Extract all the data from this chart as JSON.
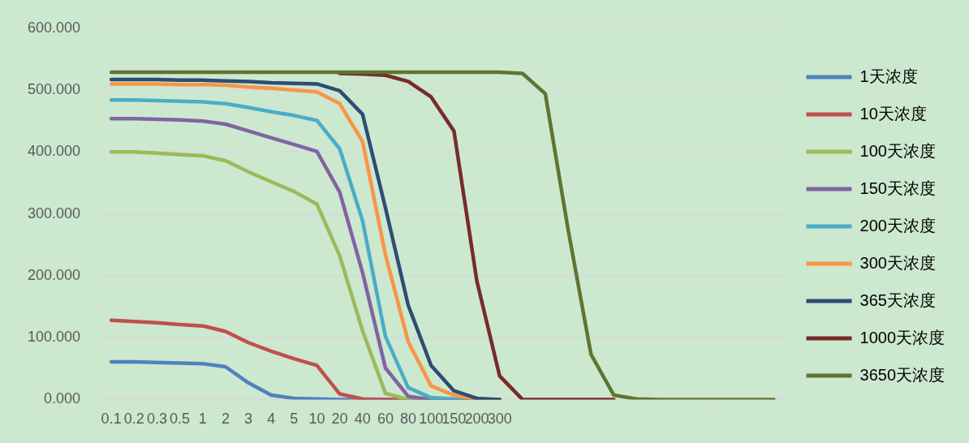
{
  "chart_data": {
    "type": "line",
    "categories": [
      "0.1",
      "0.2",
      "0.3",
      "0.5",
      "1",
      "2",
      "3",
      "4",
      "5",
      "10",
      "20",
      "40",
      "60",
      "80",
      "100",
      "150",
      "200",
      "300",
      null,
      null,
      null,
      null,
      null,
      null,
      null,
      null,
      null,
      null,
      null,
      null
    ],
    "ylim": [
      0,
      600
    ],
    "yticks": [
      {
        "value": 0,
        "label": "0.000"
      },
      {
        "value": 100,
        "label": "100.000"
      },
      {
        "value": 200,
        "label": "200.000"
      },
      {
        "value": 300,
        "label": "300.000"
      },
      {
        "value": 400,
        "label": "400.000"
      },
      {
        "value": 500,
        "label": "500.000"
      },
      {
        "value": 600,
        "label": "600.000"
      }
    ],
    "grid": "y",
    "legend": "right",
    "marker": "none",
    "line_style": "solid",
    "series": [
      {
        "name": "1天浓度",
        "color": "#4f81bd",
        "values": [
          61,
          61,
          60,
          59,
          58,
          53,
          27,
          7,
          2,
          1,
          0,
          0,
          0,
          0,
          0,
          0,
          0,
          0,
          null,
          null,
          null,
          null,
          null,
          null,
          null,
          null,
          null,
          null,
          null,
          null
        ]
      },
      {
        "name": "10天浓度",
        "color": "#c0504d",
        "values": [
          128,
          126,
          124,
          121,
          119,
          110,
          92,
          78,
          66,
          55,
          9,
          1,
          0,
          0,
          0,
          0,
          0,
          0,
          null,
          null,
          null,
          null,
          null,
          null,
          null,
          null,
          null,
          null,
          null,
          null
        ]
      },
      {
        "name": "100天浓度",
        "color": "#9bbb59",
        "values": [
          400,
          400,
          398,
          396,
          394,
          386,
          368,
          352,
          336,
          316,
          232,
          111,
          10,
          0,
          0,
          0,
          0,
          0,
          null,
          null,
          null,
          null,
          null,
          null,
          null,
          null,
          null,
          null,
          null,
          null
        ]
      },
      {
        "name": "150天浓度",
        "color": "#8064a2",
        "values": [
          454,
          454,
          453,
          452,
          450,
          445,
          434,
          423,
          412,
          401,
          335,
          205,
          51,
          5,
          0,
          0,
          0,
          0,
          null,
          null,
          null,
          null,
          null,
          null,
          null,
          null,
          null,
          null,
          null,
          null
        ]
      },
      {
        "name": "200天浓度",
        "color": "#4bacc6",
        "values": [
          484,
          484,
          483,
          482,
          481,
          478,
          472,
          465,
          459,
          451,
          405,
          289,
          102,
          19,
          3,
          1,
          0,
          0,
          null,
          null,
          null,
          null,
          null,
          null,
          null,
          null,
          null,
          null,
          null,
          null
        ]
      },
      {
        "name": "300天浓度",
        "color": "#f79646",
        "values": [
          510,
          510,
          510,
          509,
          509,
          508,
          505,
          503,
          500,
          497,
          478,
          417,
          234,
          93,
          22,
          7,
          0,
          0,
          null,
          null,
          null,
          null,
          null,
          null,
          null,
          null,
          null,
          null,
          null,
          null
        ]
      },
      {
        "name": "365天浓度",
        "color": "#2c4d75",
        "values": [
          517,
          517,
          517,
          516,
          516,
          515,
          514,
          512,
          511,
          510,
          499,
          461,
          310,
          152,
          55,
          14,
          2,
          0,
          null,
          null,
          null,
          null,
          null,
          null,
          null,
          null,
          null,
          null,
          null,
          null
        ]
      },
      {
        "name": "1000天浓度",
        "color": "#772c2a",
        "values": [
          null,
          null,
          null,
          null,
          null,
          null,
          null,
          null,
          null,
          null,
          527,
          526,
          524,
          514,
          489,
          434,
          192,
          38,
          0,
          0,
          0,
          0,
          0,
          null,
          null,
          null,
          null,
          null,
          null,
          null
        ]
      },
      {
        "name": "3650天浓度",
        "color": "#5f7530",
        "values": [
          529,
          529,
          529,
          529,
          529,
          529,
          529,
          529,
          529,
          529,
          529,
          529,
          529,
          529,
          529,
          529,
          529,
          529,
          527,
          494,
          274,
          73,
          7,
          1,
          0,
          0,
          0,
          0,
          0,
          0
        ]
      }
    ]
  }
}
